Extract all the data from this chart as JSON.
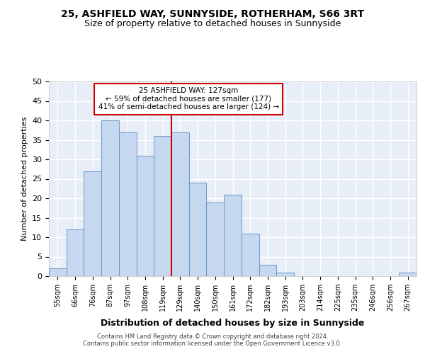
{
  "title1": "25, ASHFIELD WAY, SUNNYSIDE, ROTHERHAM, S66 3RT",
  "title2": "Size of property relative to detached houses in Sunnyside",
  "xlabel": "Distribution of detached houses by size in Sunnyside",
  "ylabel": "Number of detached properties",
  "bar_labels": [
    "55sqm",
    "66sqm",
    "76sqm",
    "87sqm",
    "97sqm",
    "108sqm",
    "119sqm",
    "129sqm",
    "140sqm",
    "150sqm",
    "161sqm",
    "172sqm",
    "182sqm",
    "193sqm",
    "203sqm",
    "214sqm",
    "225sqm",
    "235sqm",
    "246sqm",
    "256sqm",
    "267sqm"
  ],
  "bar_values": [
    2,
    12,
    27,
    40,
    37,
    31,
    36,
    37,
    24,
    19,
    21,
    11,
    3,
    1,
    0,
    0,
    0,
    0,
    0,
    0,
    1
  ],
  "bar_color": "#c5d8f0",
  "bar_edgecolor": "#5b8ec4",
  "vline_x": 7,
  "vline_color": "#cc0000",
  "annotation_title": "25 ASHFIELD WAY: 127sqm",
  "annotation_line1": "← 59% of detached houses are smaller (177)",
  "annotation_line2": "41% of semi-detached houses are larger (124) →",
  "annotation_box_edgecolor": "#cc0000",
  "plot_bg_color": "#e8eef8",
  "fig_bg_color": "#ffffff",
  "ylim": [
    0,
    50
  ],
  "yticks": [
    0,
    5,
    10,
    15,
    20,
    25,
    30,
    35,
    40,
    45,
    50
  ],
  "footer1": "Contains HM Land Registry data © Crown copyright and database right 2024.",
  "footer2": "Contains public sector information licensed under the Open Government Licence v3.0."
}
